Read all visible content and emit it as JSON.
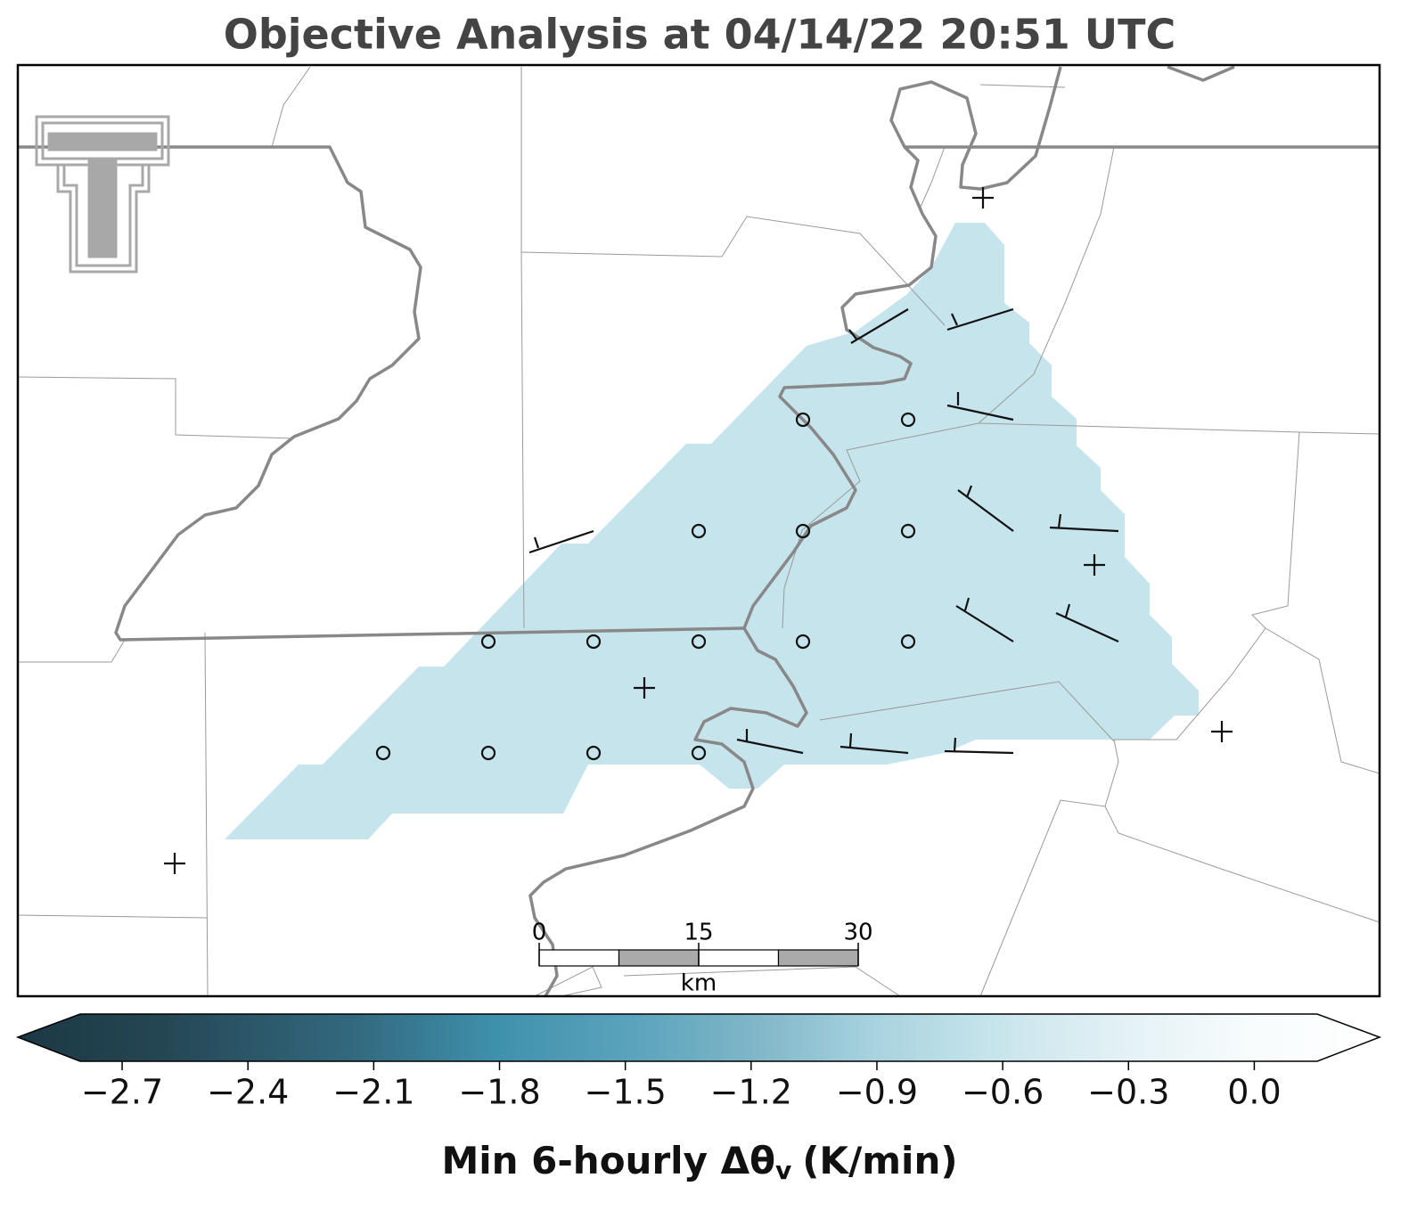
{
  "title": "Objective Analysis at 04/14/22 20:51 UTC",
  "colorbar": {
    "lim": [
      -2.8,
      0.15
    ],
    "ticks": [
      {
        "value": -2.7,
        "label": "−2.7"
      },
      {
        "value": -2.4,
        "label": "−2.4"
      },
      {
        "value": -2.1,
        "label": "−2.1"
      },
      {
        "value": -1.8,
        "label": "−1.8"
      },
      {
        "value": -1.5,
        "label": "−1.5"
      },
      {
        "value": -1.2,
        "label": "−1.2"
      },
      {
        "value": -0.9,
        "label": "−0.9"
      },
      {
        "value": -0.6,
        "label": "−0.6"
      },
      {
        "value": -0.3,
        "label": "−0.3"
      },
      {
        "value": 0,
        "label": "0.0"
      }
    ],
    "label": [
      "Min 6-hourly Δθ",
      "v",
      "(K/min)"
    ]
  },
  "scale_bar": {
    "ticks": [
      0,
      15,
      30
    ],
    "unit": "km"
  }
}
